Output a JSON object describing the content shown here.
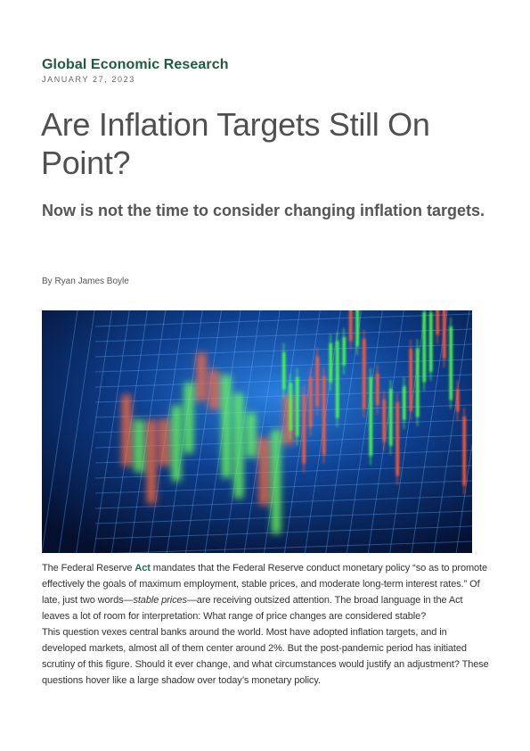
{
  "header": {
    "brand": "Global Economic Research",
    "date": "JANUARY 27, 2023"
  },
  "article": {
    "title": "Are Inflation Targets Still On Point?",
    "subtitle": "Now is not the time to consider changing inflation targets.",
    "byline": "By Ryan James Boyle",
    "image_icon": "stock-candlestick-chart-photo",
    "p1_a": "The Federal Reserve ",
    "p1_link": "Act",
    "p1_b": " mandates that the Federal Reserve conduct monetary policy “so as to promote effectively the goals of maximum employment, stable prices, and moderate long-term interest rates.”  Of late, just two words—",
    "p1_em": "stable prices",
    "p1_c": "—are receiving outsized attention. The broad language in the Act leaves a lot of room for interpretation: What range of price changes are considered stable?",
    "p2": "This question vexes central banks around the world. Most have adopted inflation targets, and in developed markets, almost all of them center around 2%. But the post-pandemic period has initiated scrutiny of this figure. Should it ever change, and what circumstances would justify an adjustment?  These questions hover like a large shadow over today’s monetary policy.",
    "link_color": "#1f6f5a",
    "brand_color": "#1f5a42"
  }
}
